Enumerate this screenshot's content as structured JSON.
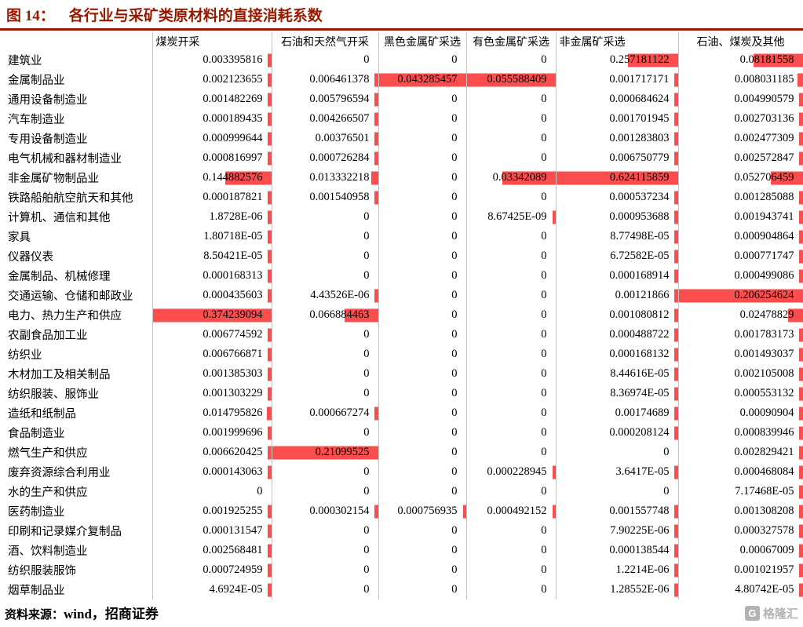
{
  "title": {
    "prefix": "图 14：",
    "text": "各行业与采矿类原材料的直接消耗系数"
  },
  "footer": {
    "source_label": "资料来源：",
    "source_text": "wind，招商证券"
  },
  "watermark": {
    "icon_letter": "G",
    "text": "格隆汇"
  },
  "colors": {
    "accent": "#971a00",
    "bar": "#fb4d4d",
    "grid": "#c6c6c6",
    "watermark": "#b3b3b3"
  },
  "chart_data": {
    "type": "table",
    "title": "图 14：各行业与采矿类原材料的直接消耗系数",
    "conditional_formatting": "red data bars, right-anchored, scaled to each column maximum",
    "columns": [
      "煤炭开采",
      "石油和天然气开采",
      "黑色金属矿采选",
      "有色金属矿采选",
      "非金属矿采选",
      "石油、煤炭及其他"
    ],
    "rows": [
      {
        "label": "建筑业",
        "values": [
          "0.003395816",
          "0",
          "0",
          "0",
          "0.257181122",
          "0.08181558"
        ]
      },
      {
        "label": "金属制品业",
        "values": [
          "0.002123655",
          "0.006461378",
          "0.043285457",
          "0.055588409",
          "0.001717171",
          "0.008031185"
        ]
      },
      {
        "label": "通用设备制造业",
        "values": [
          "0.001482269",
          "0.005796594",
          "0",
          "0",
          "0.000684624",
          "0.004990579"
        ]
      },
      {
        "label": "汽车制造业",
        "values": [
          "0.000189435",
          "0.004266507",
          "0",
          "0",
          "0.001701945",
          "0.002703136"
        ]
      },
      {
        "label": "专用设备制造业",
        "values": [
          "0.000999644",
          "0.00376501",
          "0",
          "0",
          "0.001283803",
          "0.002477309"
        ]
      },
      {
        "label": "电气机械和器材制造业",
        "values": [
          "0.000816997",
          "0.000726284",
          "0",
          "0",
          "0.006750779",
          "0.002572847"
        ]
      },
      {
        "label": "非金属矿物制品业",
        "values": [
          "0.144882576",
          "0.013332218",
          "0",
          "0.03342089",
          "0.624115859",
          "0.052706459"
        ]
      },
      {
        "label": "铁路船舶航空航天和其他",
        "values": [
          "0.000187821",
          "0.001540958",
          "0",
          "0",
          "0.000537234",
          "0.001285088"
        ]
      },
      {
        "label": "计算机、通信和其他",
        "values": [
          "1.8728E-06",
          "0",
          "0",
          "8.67425E-09",
          "0.000953688",
          "0.001943741"
        ]
      },
      {
        "label": "家具",
        "values": [
          "1.80718E-05",
          "0",
          "0",
          "0",
          "8.77498E-05",
          "0.000904864"
        ]
      },
      {
        "label": "仪器仪表",
        "values": [
          "8.50421E-05",
          "0",
          "0",
          "0",
          "6.72582E-05",
          "0.000771747"
        ]
      },
      {
        "label": "金属制品、机械修理",
        "values": [
          "0.000168313",
          "0",
          "0",
          "0",
          "0.000168914",
          "0.000499086"
        ]
      },
      {
        "label": "交通运输、仓储和邮政业",
        "values": [
          "0.000435603",
          "4.43526E-06",
          "0",
          "0",
          "0.00121866",
          "0.206254624"
        ]
      },
      {
        "label": "电力、热力生产和供应",
        "values": [
          "0.374239094",
          "0.066884463",
          "0",
          "0",
          "0.001080812",
          "0.02478829"
        ]
      },
      {
        "label": "农副食品加工业",
        "values": [
          "0.006774592",
          "0",
          "0",
          "0",
          "0.000488722",
          "0.001783173"
        ]
      },
      {
        "label": "纺织业",
        "values": [
          "0.006766871",
          "0",
          "0",
          "0",
          "0.000168132",
          "0.001493037"
        ]
      },
      {
        "label": "木材加工及相关制品",
        "values": [
          "0.001385303",
          "0",
          "0",
          "0",
          "8.44616E-05",
          "0.002105008"
        ]
      },
      {
        "label": "纺织服装、服饰业",
        "values": [
          "0.001303229",
          "0",
          "0",
          "0",
          "8.36974E-05",
          "0.000553132"
        ]
      },
      {
        "label": "造纸和纸制品",
        "values": [
          "0.014795826",
          "0.000667274",
          "0",
          "0",
          "0.00174689",
          "0.00090904"
        ]
      },
      {
        "label": "食品制造业",
        "values": [
          "0.001999696",
          "0",
          "0",
          "0",
          "0.000208124",
          "0.000839946"
        ]
      },
      {
        "label": "燃气生产和供应",
        "values": [
          "0.006620425",
          "0.21099525",
          "0",
          "0",
          "0",
          "0.002829421"
        ]
      },
      {
        "label": "废弃资源综合利用业",
        "values": [
          "0.000143063",
          "0",
          "0",
          "0.000228945",
          "3.6417E-05",
          "0.000468084"
        ]
      },
      {
        "label": "水的生产和供应",
        "values": [
          "0",
          "0",
          "0",
          "0",
          "0",
          "7.17468E-05"
        ]
      },
      {
        "label": "医药制造业",
        "values": [
          "0.001925255",
          "0.000302154",
          "0.000756935",
          "0.000492152",
          "0.001557748",
          "0.001308208"
        ]
      },
      {
        "label": "印刷和记录媒介复制品",
        "values": [
          "0.000131547",
          "0",
          "0",
          "0",
          "7.90225E-06",
          "0.000327578"
        ]
      },
      {
        "label": "酒、饮料制造业",
        "values": [
          "0.002568481",
          "0",
          "0",
          "0",
          "0.000138544",
          "0.00067009"
        ]
      },
      {
        "label": "纺织服装服饰",
        "values": [
          "0.000724959",
          "0",
          "0",
          "0",
          "1.2214E-06",
          "0.001021957"
        ]
      },
      {
        "label": "烟草制品业",
        "values": [
          "4.6924E-05",
          "0",
          "0",
          "0",
          "1.28552E-06",
          "4.80742E-05"
        ]
      }
    ]
  }
}
